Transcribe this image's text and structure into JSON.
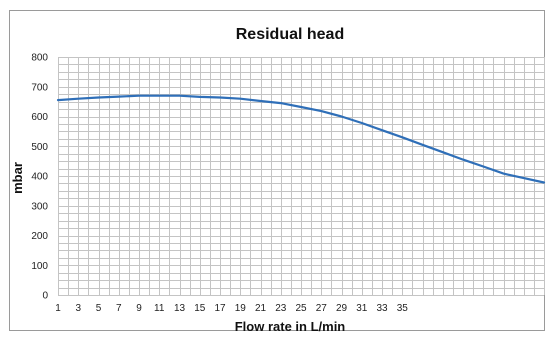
{
  "chart_data": {
    "type": "line",
    "title": "Residual head",
    "xlabel": "Flow rate in L/min",
    "ylabel": "mbar",
    "ylim": [
      0,
      800
    ],
    "yticks": [
      "0",
      "100",
      "200",
      "300",
      "400",
      "500",
      "600",
      "700",
      "800"
    ],
    "xlim": [
      1,
      49
    ],
    "xticks": [
      "1",
      "3",
      "5",
      "7",
      "9",
      "11",
      "13",
      "15",
      "17",
      "19",
      "21",
      "23",
      "25",
      "27",
      "29",
      "31",
      "33",
      "35"
    ],
    "grid": true,
    "legend": "none",
    "series": [
      {
        "color": "#2f6fb8",
        "x": [
          1,
          3,
          5,
          7,
          9,
          11,
          13,
          15,
          17,
          19,
          21,
          23,
          25,
          27,
          29,
          31,
          33,
          35,
          37,
          39,
          41,
          43,
          45,
          47,
          49
        ],
        "y": [
          655,
          660,
          664,
          667,
          670,
          670,
          670,
          666,
          664,
          660,
          652,
          645,
          632,
          618,
          600,
          578,
          554,
          530,
          505,
          480,
          455,
          432,
          408,
          393,
          378
        ]
      }
    ]
  }
}
